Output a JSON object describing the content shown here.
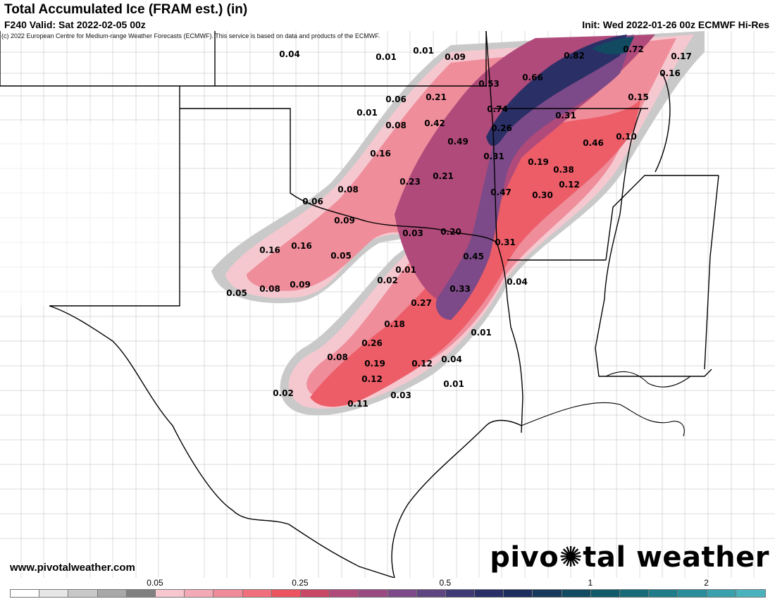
{
  "header": {
    "title": "Total Accumulated Ice (FRAM est.) (in)",
    "valid": "F240 Valid: Sat 2022-02-05 00z",
    "init": "Init: Wed 2022-01-26 00z ECMWF Hi-Res",
    "copyright": "(c) 2022 European Centre for Medium-range Weather Forecasts (ECMWF). This service is based on data and products of the ECMWF."
  },
  "footer": {
    "website": "www.pivotalweather.com",
    "brand_before": "pivo",
    "brand_icon": "gear-icon",
    "brand_after": "tal weather"
  },
  "legend": {
    "colors": [
      "#ffffff",
      "#e6e6e6",
      "#c8c8c8",
      "#a8a8a8",
      "#808080",
      "#f7c6cf",
      "#f4a9b6",
      "#f08c99",
      "#ef6f7c",
      "#ec5560",
      "#c84868",
      "#b04a7a",
      "#9a4a82",
      "#7c4a88",
      "#5e4480",
      "#3f3a74",
      "#2a2f66",
      "#1e2d5e",
      "#173a5c",
      "#124a62",
      "#115a6a",
      "#176b78",
      "#1f7c88",
      "#2a8e9a",
      "#3aa0ab",
      "#4ab2bc"
    ],
    "ticks": [
      "0.05",
      "0.25",
      "0.5",
      "1",
      "2"
    ],
    "tick_positions": [
      5,
      10,
      15,
      20,
      24
    ]
  },
  "values": [
    "0.04",
    "0.01",
    "0.01",
    "0.09",
    "0.82",
    "0.72",
    "0.17",
    "0.16",
    "0.53",
    "0.66",
    "0.06",
    "0.21",
    "0.15",
    "0.01",
    "0.74",
    "0.31",
    "0.08",
    "0.42",
    "0.26",
    "0.10",
    "0.49",
    "0.46",
    "0.16",
    "0.31",
    "0.19",
    "0.38",
    "0.23",
    "0.21",
    "0.08",
    "0.12",
    "0.47",
    "0.30",
    "0.06",
    "0.09",
    "0.03",
    "0.20",
    "0.31",
    "0.16",
    "0.16",
    "0.05",
    "0.45",
    "0.01",
    "0.04",
    "0.02",
    "0.05",
    "0.08",
    "0.09",
    "0.33",
    "0.27",
    "0.18",
    "0.01",
    "0.26",
    "0.08",
    "0.19",
    "0.12",
    "0.04",
    "0.12",
    "0.01",
    "0.02",
    "0.03",
    "0.11"
  ]
}
